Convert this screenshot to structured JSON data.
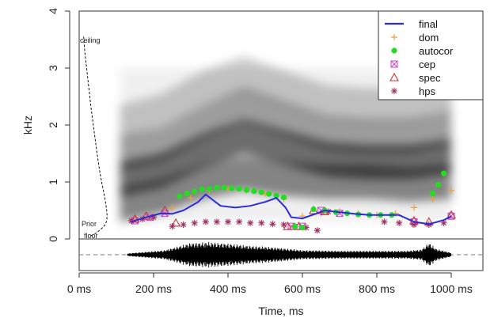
{
  "chart_data": {
    "type": "line",
    "xlabel": "Time, ms",
    "ylabel": "kHz",
    "xlim": [
      0,
      1100
    ],
    "ylim": [
      0,
      4
    ],
    "x_ticks": [
      {
        "value": 0,
        "label": "0 ms"
      },
      {
        "value": 200,
        "label": "200 ms"
      },
      {
        "value": 400,
        "label": "400 ms"
      },
      {
        "value": 600,
        "label": "600 ms"
      },
      {
        "value": 800,
        "label": "800 ms"
      },
      {
        "value": 1000,
        "label": "1000 ms"
      }
    ],
    "y_ticks": [
      {
        "value": 0,
        "label": "0"
      },
      {
        "value": 1,
        "label": "1"
      },
      {
        "value": 2,
        "label": "2"
      },
      {
        "value": 3,
        "label": "3"
      },
      {
        "value": 4,
        "label": "4"
      }
    ],
    "annotations": {
      "ceiling": "ceiling",
      "prior": "Prior",
      "floor": "floor"
    },
    "legend_position": "top-right",
    "prior_curve": {
      "x": [
        12,
        15,
        20,
        25,
        32,
        40,
        48,
        55,
        62,
        68,
        72,
        74,
        75,
        74,
        70,
        60,
        45,
        30
      ],
      "y": [
        3.55,
        3.3,
        3.0,
        2.7,
        2.3,
        1.9,
        1.5,
        1.2,
        0.95,
        0.75,
        0.6,
        0.5,
        0.4,
        0.32,
        0.25,
        0.18,
        0.1,
        0.05
      ]
    },
    "series": [
      {
        "name": "final",
        "color": "#2b2bd9",
        "marker": "line",
        "x": [
          140,
          180,
          220,
          250,
          280,
          320,
          340,
          360,
          380,
          420,
          460,
          500,
          530,
          555,
          570,
          600,
          640,
          660,
          700,
          740,
          780,
          820,
          860,
          900,
          940,
          980,
          1000
        ],
        "y": [
          0.3,
          0.38,
          0.45,
          0.44,
          0.5,
          0.65,
          0.78,
          0.68,
          0.58,
          0.55,
          0.58,
          0.65,
          0.72,
          0.55,
          0.38,
          0.36,
          0.45,
          0.5,
          0.47,
          0.44,
          0.42,
          0.42,
          0.42,
          0.3,
          0.26,
          0.33,
          0.4
        ]
      },
      {
        "name": "dom",
        "color": "#e8a040",
        "marker": "plus",
        "x": [
          150,
          200,
          250,
          300,
          350,
          400,
          450,
          500,
          550,
          600,
          650,
          700,
          750,
          800,
          850,
          900,
          950,
          1000
        ],
        "y": [
          0.35,
          0.4,
          0.55,
          0.72,
          0.85,
          0.88,
          0.85,
          0.8,
          0.7,
          0.4,
          0.45,
          0.48,
          0.45,
          0.42,
          0.45,
          0.55,
          0.7,
          0.85
        ]
      },
      {
        "name": "autocor",
        "color": "#22dd22",
        "marker": "dot",
        "x": [
          270,
          290,
          310,
          330,
          350,
          370,
          390,
          410,
          430,
          450,
          470,
          490,
          510,
          530,
          550,
          580,
          600,
          630,
          660,
          690,
          720,
          750,
          780,
          810,
          840,
          950,
          965,
          980
        ],
        "y": [
          0.75,
          0.8,
          0.83,
          0.87,
          0.88,
          0.9,
          0.9,
          0.89,
          0.88,
          0.86,
          0.84,
          0.82,
          0.79,
          0.76,
          0.73,
          0.22,
          0.2,
          0.52,
          0.5,
          0.47,
          0.45,
          0.43,
          0.42,
          0.42,
          0.42,
          0.8,
          0.95,
          1.15
        ]
      },
      {
        "name": "cep",
        "color": "#cc44cc",
        "marker": "square",
        "x": [
          150,
          190,
          230,
          570,
          600,
          650,
          700,
          900,
          1000
        ],
        "y": [
          0.32,
          0.38,
          0.45,
          0.22,
          0.22,
          0.5,
          0.45,
          0.3,
          0.4
        ]
      },
      {
        "name": "spec",
        "color": "#cc3333",
        "marker": "triangle",
        "x": [
          150,
          180,
          230,
          260,
          560,
          590,
          630,
          660,
          900,
          940,
          1000
        ],
        "y": [
          0.35,
          0.4,
          0.5,
          0.28,
          0.22,
          0.22,
          0.5,
          0.48,
          0.32,
          0.3,
          0.42
        ]
      },
      {
        "name": "hps",
        "color": "#a03060",
        "marker": "star",
        "x": [
          140,
          170,
          200,
          250,
          280,
          310,
          340,
          370,
          400,
          430,
          460,
          490,
          520,
          550,
          580,
          610,
          640,
          670,
          820,
          860,
          900,
          940,
          980
        ],
        "y": [
          0.32,
          0.35,
          0.38,
          0.22,
          0.25,
          0.28,
          0.3,
          0.3,
          0.3,
          0.3,
          0.28,
          0.28,
          0.26,
          0.25,
          0.22,
          0.2,
          0.15,
          0.48,
          0.3,
          0.28,
          0.25,
          0.25,
          0.28
        ]
      }
    ],
    "spectrogram": {
      "x_start": 110,
      "x_end": 1000,
      "bands": [
        {
          "y": [
            0.55,
            0.7,
            0.95,
            1.1,
            1.0,
            0.95,
            0.95,
            0.9,
            0.95
          ],
          "intensity": 0.45
        },
        {
          "y": [
            1.0,
            1.15,
            1.5,
            1.75,
            1.55,
            1.35,
            1.3,
            1.3,
            1.4
          ],
          "intensity": 0.55
        },
        {
          "y": [
            1.45,
            1.6,
            2.0,
            2.3,
            2.05,
            1.8,
            1.75,
            1.75,
            1.9
          ],
          "intensity": 0.35
        },
        {
          "y": [
            2.0,
            2.2,
            2.6,
            2.85,
            2.6,
            2.35,
            2.3,
            2.3,
            2.5
          ],
          "intensity": 0.2
        }
      ]
    },
    "waveform": {
      "x": [
        130,
        230,
        300,
        350,
        400,
        450,
        530,
        600,
        700,
        800,
        880,
        920,
        940,
        960,
        1000
      ],
      "amplitude": [
        0.1,
        0.35,
        0.9,
        0.95,
        0.85,
        0.7,
        0.55,
        0.35,
        0.3,
        0.3,
        0.3,
        0.4,
        0.9,
        0.45,
        0.15
      ]
    }
  }
}
